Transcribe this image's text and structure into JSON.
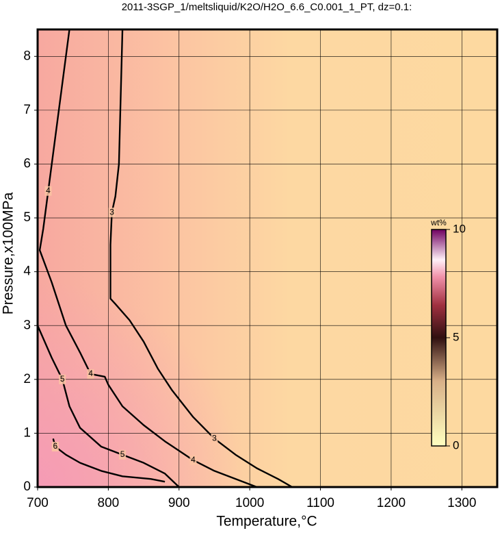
{
  "chart_data": {
    "type": "contour",
    "title": "2011-3SGP_1/meltsliquid/K2O/H2O_6.6_C0.001_1_PT, dz=0.1:",
    "x_label": "Temperature,°C",
    "y_label": "Pressure,x100MPa",
    "xlim": [
      700,
      1350
    ],
    "ylim": [
      0,
      8.5
    ],
    "xticks": [
      700,
      800,
      900,
      1000,
      1100,
      1200,
      1300
    ],
    "yticks": [
      0,
      1,
      2,
      3,
      4,
      5,
      6,
      7,
      8
    ],
    "grid": true,
    "colorbar": {
      "label": "wt%",
      "zlim": [
        0,
        10
      ],
      "zticks": [
        0,
        5,
        10
      ]
    },
    "series": [
      {
        "level": 3,
        "color": "#000000",
        "x": [
          820,
          818,
          815,
          810,
          805,
          803,
          803,
          810,
          830,
          850,
          870,
          890,
          920,
          950,
          980,
          1010,
          1040,
          1060
        ],
        "y": [
          8.5,
          7.5,
          6,
          5.4,
          5.1,
          4.5,
          3.5,
          3.4,
          3.1,
          2.7,
          2.2,
          1.8,
          1.3,
          0.9,
          0.6,
          0.35,
          0.15,
          0
        ]
      },
      {
        "level": 4,
        "color": "#000000",
        "x": [
          745,
          735,
          725,
          715,
          708,
          703,
          720,
          740,
          760,
          775,
          795,
          800,
          820,
          850,
          880,
          920,
          950,
          990,
          1010
        ],
        "y": [
          8.5,
          7.5,
          6.5,
          5.5,
          4.8,
          4.4,
          3.8,
          3,
          2.5,
          2.1,
          2.05,
          1.9,
          1.5,
          1.15,
          0.85,
          0.5,
          0.3,
          0.1,
          0
        ]
      },
      {
        "level": 5,
        "color": "#000000",
        "x": [
          700,
          720,
          735,
          745,
          760,
          790,
          820,
          850,
          880,
          900
        ],
        "y": [
          3,
          2.4,
          2,
          1.5,
          1.1,
          0.75,
          0.6,
          0.45,
          0.25,
          0
        ]
      },
      {
        "level": 6,
        "color": "#000000",
        "x": [
          722,
          725,
          740,
          760,
          790,
          820,
          860,
          880
        ],
        "y": [
          0.9,
          0.75,
          0.6,
          0.45,
          0.3,
          0.2,
          0.15,
          0.1
        ]
      }
    ]
  }
}
